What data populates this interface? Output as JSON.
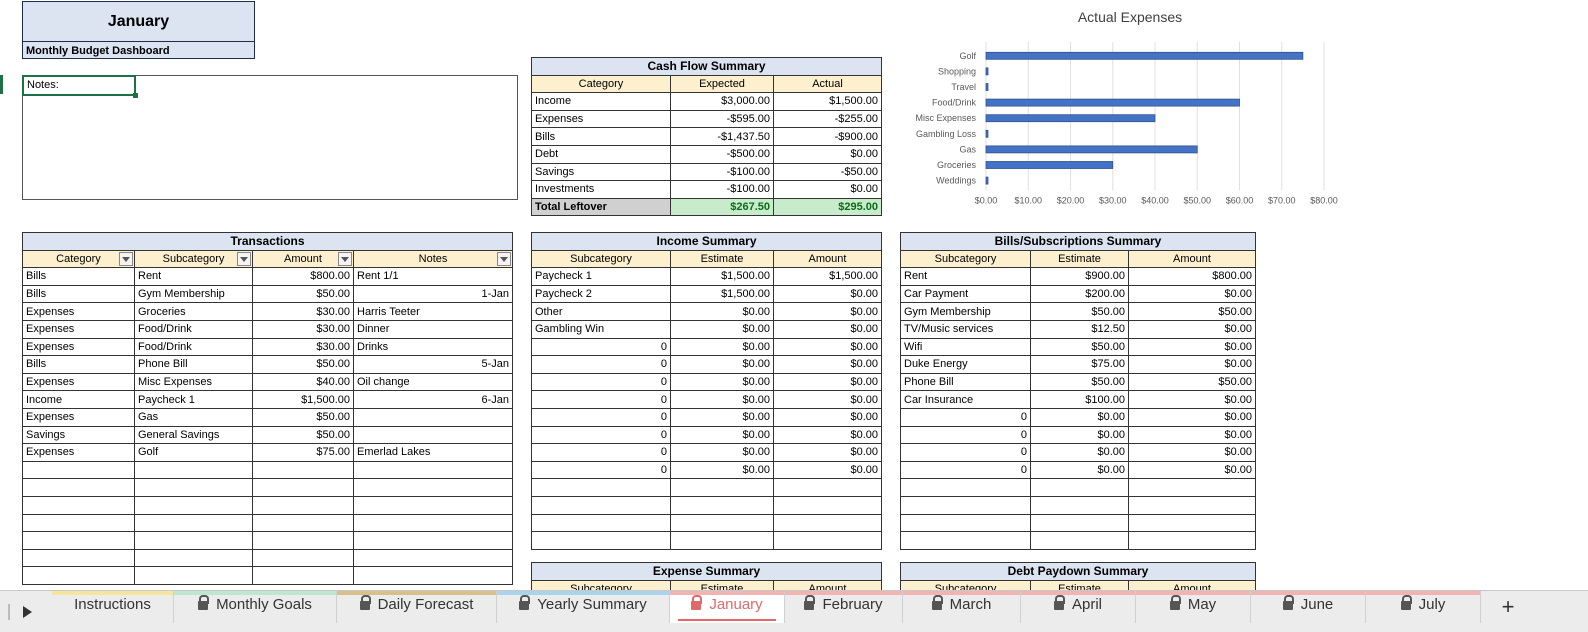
{
  "title": {
    "month": "January",
    "subtitle": "Monthly Budget Dashboard"
  },
  "notes": {
    "label": "Notes:"
  },
  "cash_flow": {
    "title": "Cash Flow Summary",
    "headers": [
      "Category",
      "Expected",
      "Actual"
    ],
    "rows": [
      [
        "Income",
        "$3,000.00",
        "$1,500.00"
      ],
      [
        "Expenses",
        "-$595.00",
        "-$255.00"
      ],
      [
        "Bills",
        "-$1,437.50",
        "-$900.00"
      ],
      [
        "Debt",
        "-$500.00",
        "$0.00"
      ],
      [
        "Savings",
        "-$100.00",
        "-$50.00"
      ],
      [
        "Investments",
        "-$100.00",
        "$0.00"
      ]
    ],
    "total": [
      "Total Leftover",
      "$267.50",
      "$295.00"
    ]
  },
  "chart_data": {
    "type": "bar",
    "orientation": "horizontal",
    "title": "Actual Expenses",
    "categories": [
      "Golf",
      "Shopping",
      "Travel",
      "Food/Drink",
      "Misc Expenses",
      "Gambling Loss",
      "Gas",
      "Groceries",
      "Weddings"
    ],
    "values": [
      75,
      0,
      0,
      60,
      40,
      0,
      50,
      30,
      0
    ],
    "xlim": [
      0,
      80
    ],
    "ticks": [
      "$0.00",
      "$10.00",
      "$20.00",
      "$30.00",
      "$40.00",
      "$50.00",
      "$60.00",
      "$70.00",
      "$80.00"
    ],
    "grid": true,
    "color": "#4472c4"
  },
  "transactions": {
    "title": "Transactions",
    "headers": [
      "Category",
      "Subcategory",
      "Amount",
      "Notes"
    ],
    "rows": [
      [
        "Bills",
        "Rent",
        "$800.00",
        "Rent 1/1"
      ],
      [
        "Bills",
        "Gym Membership",
        "$50.00",
        "1-Jan"
      ],
      [
        "Expenses",
        "Groceries",
        "$30.00",
        "Harris Teeter"
      ],
      [
        "Expenses",
        "Food/Drink",
        "$30.00",
        "Dinner"
      ],
      [
        "Expenses",
        "Food/Drink",
        "$30.00",
        "Drinks"
      ],
      [
        "Bills",
        "Phone Bill",
        "$50.00",
        "5-Jan"
      ],
      [
        "Expenses",
        "Misc Expenses",
        "$40.00",
        "Oil change"
      ],
      [
        "Income",
        "Paycheck 1",
        "$1,500.00",
        "6-Jan"
      ],
      [
        "Expenses",
        "Gas",
        "$50.00",
        ""
      ],
      [
        "Savings",
        "General Savings",
        "$50.00",
        ""
      ],
      [
        "Expenses",
        "Golf",
        "$75.00",
        "Emerlad Lakes"
      ],
      [
        "",
        "",
        "",
        ""
      ],
      [
        "",
        "",
        "",
        ""
      ],
      [
        "",
        "",
        "",
        ""
      ],
      [
        "",
        "",
        "",
        ""
      ],
      [
        "",
        "",
        "",
        ""
      ],
      [
        "",
        "",
        "",
        ""
      ],
      [
        "",
        "",
        "",
        ""
      ]
    ]
  },
  "income": {
    "title": "Income Summary",
    "headers": [
      "Subcategory",
      "Estimate",
      "Amount"
    ],
    "rows": [
      [
        "Paycheck 1",
        "$1,500.00",
        "$1,500.00"
      ],
      [
        "Paycheck 2",
        "$1,500.00",
        "$0.00"
      ],
      [
        "Other",
        "$0.00",
        "$0.00"
      ],
      [
        "Gambling Win",
        "$0.00",
        "$0.00"
      ],
      [
        "0",
        "$0.00",
        "$0.00"
      ],
      [
        "0",
        "$0.00",
        "$0.00"
      ],
      [
        "0",
        "$0.00",
        "$0.00"
      ],
      [
        "0",
        "$0.00",
        "$0.00"
      ],
      [
        "0",
        "$0.00",
        "$0.00"
      ],
      [
        "0",
        "$0.00",
        "$0.00"
      ],
      [
        "0",
        "$0.00",
        "$0.00"
      ],
      [
        "0",
        "$0.00",
        "$0.00"
      ],
      [
        "",
        "",
        ""
      ],
      [
        "",
        "",
        ""
      ],
      [
        "",
        "",
        ""
      ],
      [
        "",
        "",
        ""
      ]
    ]
  },
  "bills": {
    "title": "Bills/Subscriptions Summary",
    "headers": [
      "Subcategory",
      "Estimate",
      "Amount"
    ],
    "rows": [
      [
        "Rent",
        "$900.00",
        "$800.00"
      ],
      [
        "Car Payment",
        "$200.00",
        "$0.00"
      ],
      [
        "Gym Membership",
        "$50.00",
        "$50.00"
      ],
      [
        "TV/Music services",
        "$12.50",
        "$0.00"
      ],
      [
        "Wifi",
        "$50.00",
        "$0.00"
      ],
      [
        "Duke Energy",
        "$75.00",
        "$0.00"
      ],
      [
        "Phone Bill",
        "$50.00",
        "$50.00"
      ],
      [
        "Car Insurance",
        "$100.00",
        "$0.00"
      ],
      [
        "0",
        "$0.00",
        "$0.00"
      ],
      [
        "0",
        "$0.00",
        "$0.00"
      ],
      [
        "0",
        "$0.00",
        "$0.00"
      ],
      [
        "0",
        "$0.00",
        "$0.00"
      ],
      [
        "",
        "",
        ""
      ],
      [
        "",
        "",
        ""
      ],
      [
        "",
        "",
        ""
      ],
      [
        "",
        "",
        ""
      ]
    ]
  },
  "expense_summary": {
    "title": "Expense Summary",
    "headers": [
      "Subcategory",
      "Estimate",
      "Amount"
    ]
  },
  "debt_summary": {
    "title": "Debt Paydown Summary",
    "headers": [
      "Subcategory",
      "Estimate",
      "Amount"
    ]
  },
  "tabs": [
    {
      "label": "Instructions",
      "locked": false,
      "color": "#f5e79a",
      "active": false
    },
    {
      "label": "Monthly Goals",
      "locked": true,
      "color": "#bfe6cf",
      "active": false
    },
    {
      "label": "Daily Forecast",
      "locked": true,
      "color": "#d8c08a",
      "active": false
    },
    {
      "label": "Yearly Summary",
      "locked": true,
      "color": "#a9d4ec",
      "active": false
    },
    {
      "label": "January",
      "locked": true,
      "color": "#f2b3b3",
      "active": true
    },
    {
      "label": "February",
      "locked": true,
      "color": "#f2b3b3",
      "active": false
    },
    {
      "label": "March",
      "locked": true,
      "color": "#f2b3b3",
      "active": false
    },
    {
      "label": "April",
      "locked": true,
      "color": "#f2b3b3",
      "active": false
    },
    {
      "label": "May",
      "locked": true,
      "color": "#f2b3b3",
      "active": false
    },
    {
      "label": "June",
      "locked": true,
      "color": "#f2b3b3",
      "active": false
    },
    {
      "label": "July",
      "locked": true,
      "color": "#f2b3b3",
      "active": false
    }
  ],
  "add_tab_label": "+"
}
